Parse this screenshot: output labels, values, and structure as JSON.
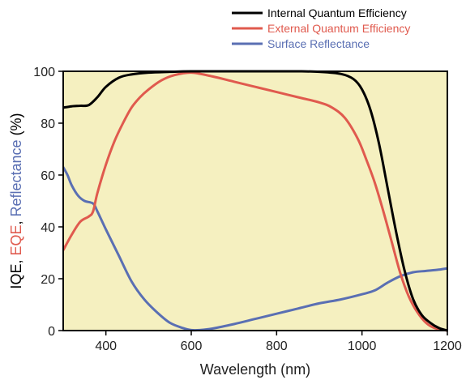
{
  "chart_data": {
    "type": "line",
    "xlabel": "Wavelength (nm)",
    "ylabel_parts": [
      {
        "text": "IQE",
        "color": "#000000"
      },
      {
        "text": ", ",
        "color": "#000000"
      },
      {
        "text": "EQE",
        "color": "#e05a4e"
      },
      {
        "text": ", ",
        "color": "#000000"
      },
      {
        "text": "Reflectance",
        "color": "#5a6fb3"
      },
      {
        "text": " (%)",
        "color": "#000000"
      }
    ],
    "xlim": [
      300,
      1200
    ],
    "ylim": [
      0,
      100
    ],
    "x_ticks": [
      400,
      600,
      800,
      1000,
      1200
    ],
    "y_ticks": [
      0,
      20,
      40,
      60,
      80,
      100
    ],
    "plot_background": "#f5f0c0",
    "grid": false,
    "legend_position": "top-right",
    "series": [
      {
        "name": "Internal Quantum Efficiency",
        "color": "#000000",
        "points": [
          [
            300,
            86
          ],
          [
            320,
            86.5
          ],
          [
            340,
            86.7
          ],
          [
            360,
            87
          ],
          [
            380,
            90
          ],
          [
            400,
            94
          ],
          [
            430,
            97.5
          ],
          [
            460,
            98.8
          ],
          [
            500,
            99.5
          ],
          [
            550,
            99.8
          ],
          [
            600,
            100
          ],
          [
            700,
            100
          ],
          [
            800,
            100
          ],
          [
            850,
            100
          ],
          [
            900,
            99.8
          ],
          [
            950,
            99
          ],
          [
            980,
            97
          ],
          [
            1000,
            93
          ],
          [
            1020,
            85
          ],
          [
            1040,
            72
          ],
          [
            1060,
            55
          ],
          [
            1080,
            38
          ],
          [
            1100,
            23
          ],
          [
            1120,
            12
          ],
          [
            1140,
            6
          ],
          [
            1160,
            3
          ],
          [
            1180,
            1
          ],
          [
            1200,
            0
          ]
        ]
      },
      {
        "name": "External Quantum Efficiency",
        "color": "#e05a4e",
        "points": [
          [
            300,
            31
          ],
          [
            320,
            37
          ],
          [
            340,
            42
          ],
          [
            360,
            44
          ],
          [
            370,
            46
          ],
          [
            380,
            53
          ],
          [
            400,
            64
          ],
          [
            420,
            73
          ],
          [
            440,
            80
          ],
          [
            460,
            86
          ],
          [
            480,
            90
          ],
          [
            500,
            93
          ],
          [
            530,
            96.5
          ],
          [
            560,
            98.5
          ],
          [
            600,
            99.5
          ],
          [
            650,
            98
          ],
          [
            700,
            96
          ],
          [
            750,
            94
          ],
          [
            800,
            92
          ],
          [
            850,
            90
          ],
          [
            900,
            88
          ],
          [
            930,
            86
          ],
          [
            960,
            82
          ],
          [
            990,
            74
          ],
          [
            1010,
            66
          ],
          [
            1030,
            57
          ],
          [
            1050,
            46
          ],
          [
            1070,
            34
          ],
          [
            1090,
            22
          ],
          [
            1110,
            13
          ],
          [
            1130,
            7
          ],
          [
            1150,
            3
          ],
          [
            1170,
            1
          ],
          [
            1200,
            0
          ]
        ]
      },
      {
        "name": "Surface Reflectance",
        "color": "#5a6fb3",
        "points": [
          [
            300,
            63
          ],
          [
            310,
            60
          ],
          [
            320,
            56
          ],
          [
            335,
            52
          ],
          [
            350,
            50
          ],
          [
            370,
            49
          ],
          [
            380,
            46
          ],
          [
            400,
            39
          ],
          [
            430,
            29
          ],
          [
            460,
            19
          ],
          [
            490,
            12
          ],
          [
            520,
            7
          ],
          [
            550,
            3
          ],
          [
            580,
            1
          ],
          [
            600,
            0.2
          ],
          [
            620,
            0.2
          ],
          [
            650,
            0.8
          ],
          [
            700,
            2.5
          ],
          [
            750,
            4.5
          ],
          [
            800,
            6.5
          ],
          [
            850,
            8.5
          ],
          [
            900,
            10.5
          ],
          [
            950,
            12
          ],
          [
            1000,
            14
          ],
          [
            1030,
            15.5
          ],
          [
            1060,
            18.5
          ],
          [
            1090,
            21
          ],
          [
            1120,
            22.5
          ],
          [
            1150,
            23
          ],
          [
            1180,
            23.5
          ],
          [
            1200,
            24
          ]
        ]
      }
    ]
  }
}
